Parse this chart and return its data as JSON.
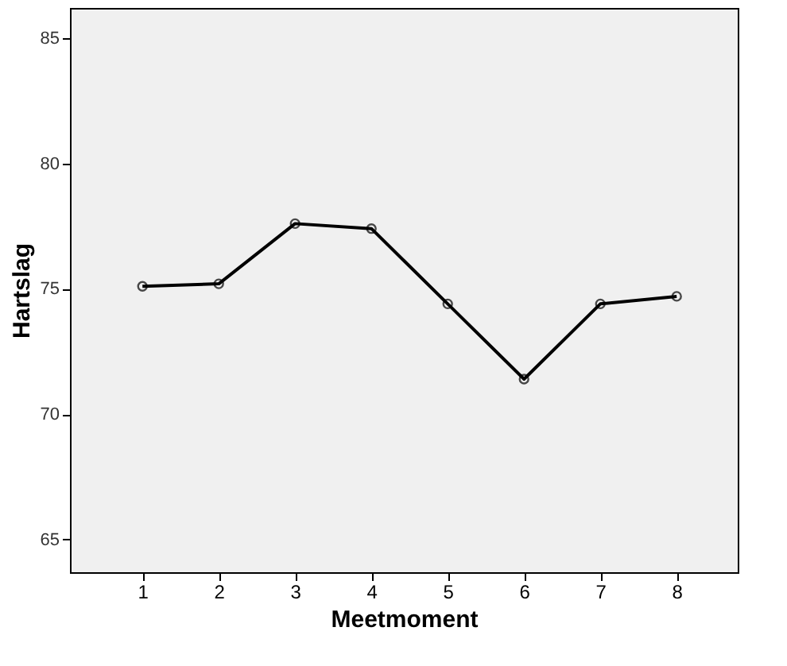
{
  "chart_data": {
    "type": "line",
    "xlabel": "Meetmoment",
    "ylabel": "Hartslag",
    "x": [
      1,
      2,
      3,
      4,
      5,
      6,
      7,
      8
    ],
    "series": [
      {
        "color": "#000000",
        "values": [
          75.1,
          75.2,
          77.6,
          77.4,
          74.4,
          71.4,
          74.4,
          74.7
        ]
      }
    ],
    "xlim": [
      0.05,
      8.8
    ],
    "xticks": [
      1,
      2,
      3,
      4,
      5,
      6,
      7,
      8
    ],
    "ylim": [
      63.7,
      86.2
    ],
    "yticks": [
      65,
      70,
      75,
      80,
      85
    ],
    "grid": false,
    "marker": "circle",
    "line_style": "solid"
  }
}
